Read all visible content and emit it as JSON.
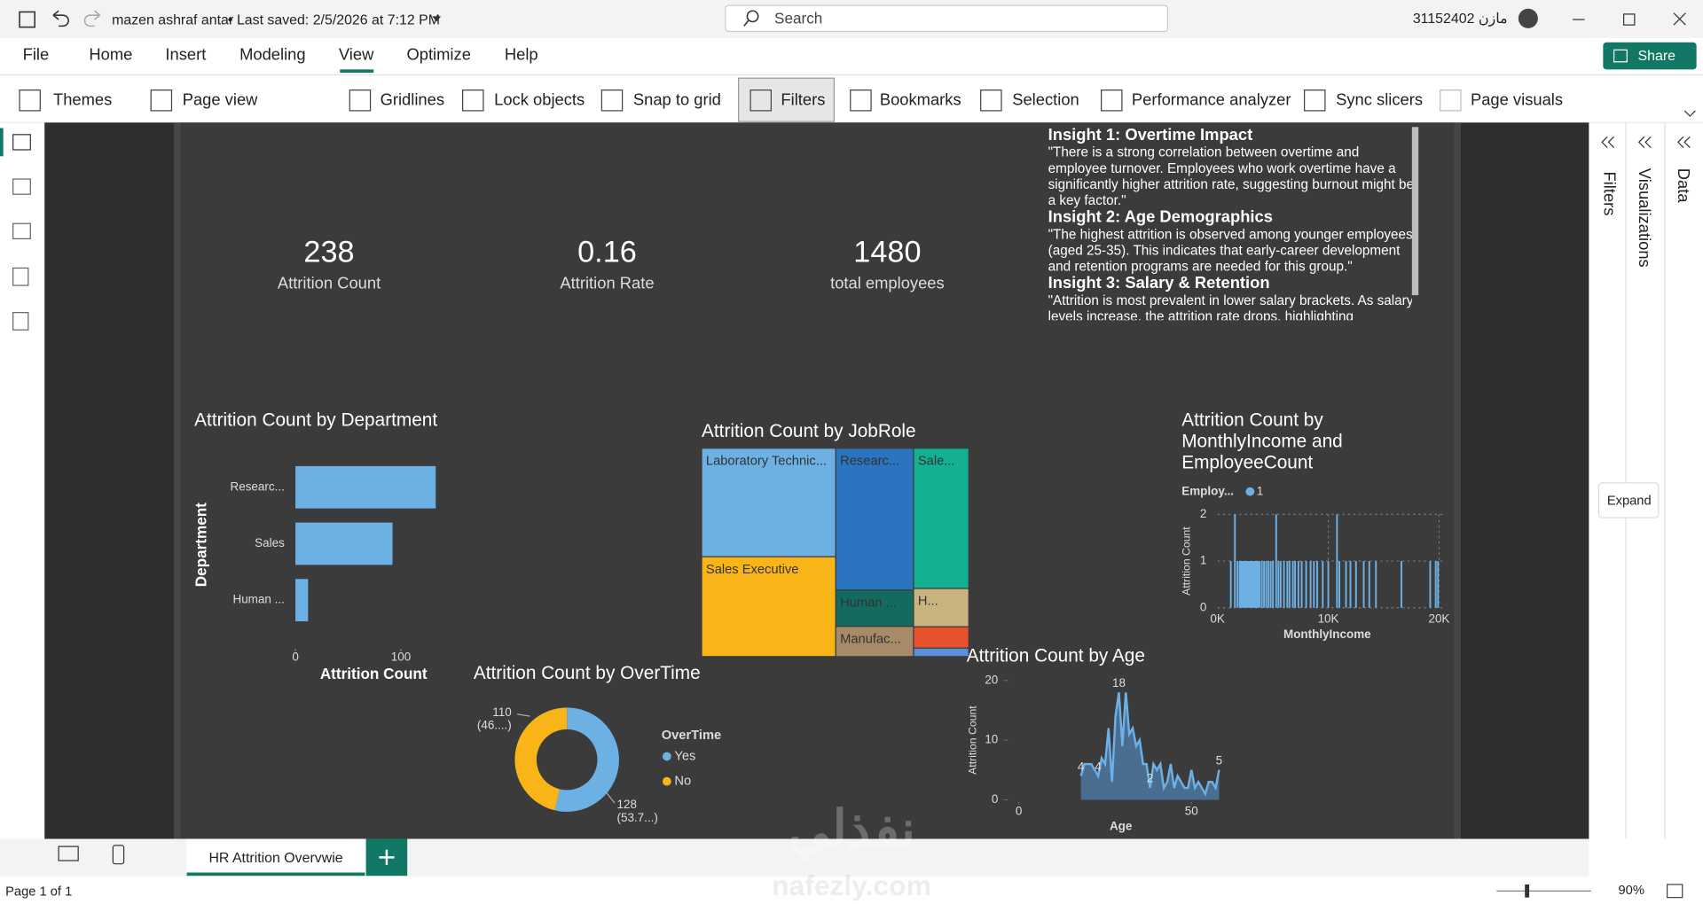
{
  "titlebar": {
    "user": "mazen ashraf antar",
    "saved": "Last saved: 2/5/2026 at 7:12 PM",
    "search": "Search",
    "account": "31152402 مازن"
  },
  "menu": [
    "File",
    "Home",
    "Insert",
    "Modeling",
    "View",
    "Optimize",
    "Help"
  ],
  "share": "Share",
  "ribbon": [
    "Themes",
    "Page view",
    "Gridlines",
    "Lock objects",
    "Snap to grid",
    "Filters",
    "Bookmarks",
    "Selection",
    "Performance analyzer",
    "Sync slicers",
    "Page visuals"
  ],
  "cards": [
    {
      "value": 238,
      "label": "Attrition Count"
    },
    {
      "value": 0.16,
      "label": "Attrition Rate"
    },
    {
      "value": 1480,
      "label": "total employees"
    }
  ],
  "insights": [
    {
      "title": "Insight 1: Overtime Impact",
      "lines": [
        "\"There is a strong correlation between overtime and",
        "employee turnover. Employees who work overtime have a",
        "significantly higher attrition rate, suggesting burnout might be",
        "a key factor.\""
      ]
    },
    {
      "title": "Insight 2: Age Demographics",
      "lines": [
        "\"The highest attrition is observed among younger employees",
        "(aged 25-35). This indicates that early-career development",
        "and retention programs are needed for this group.\""
      ]
    },
    {
      "title": "Insight 3: Salary & Retention",
      "lines": [
        "\"Attrition is most prevalent in lower salary brackets. As salary",
        "levels increase, the attrition rate drops, highlighting"
      ]
    }
  ],
  "department_chart": {
    "type": "bar",
    "title": "Attrition Count by Department",
    "x_label": "Attrition Count",
    "y_label": "Department",
    "categories": [
      "Researc...",
      "Sales",
      "Human ..."
    ],
    "values": [
      133,
      92,
      12
    ],
    "color": "#6cb0e4",
    "xlim": [
      0,
      140
    ],
    "xticks": [
      0,
      100
    ]
  },
  "jobrole_chart": {
    "type": "treemap",
    "title": "Attrition Count by JobRole",
    "categories": [
      "Laboratory Technic...",
      "Sales Executive",
      "Researc...",
      "Human ...",
      "Manufac...",
      "Sale...",
      "H...",
      null,
      null
    ],
    "values": [
      62,
      57,
      47,
      12,
      10,
      33,
      9,
      5,
      2
    ],
    "colors": [
      "#6cb0e4",
      "#f9b418",
      "#2b74c0",
      "#136a5f",
      "#a78b69",
      "#14b092",
      "#c9b37f",
      "#e8532b",
      "#5b8fd8"
    ]
  },
  "income_chart": {
    "type": "column",
    "title": [
      "Attrition Count by",
      "MonthlyIncome and",
      "EmployeeCount"
    ],
    "legend_title": "Employ...",
    "x_label": "MonthlyIncome",
    "y_label": "Attrition Count",
    "series": [
      {
        "name": "1",
        "color": "#6cb0e4",
        "x": [
          1200,
          1569,
          1800,
          2000,
          2100,
          2200,
          2300,
          2400,
          2500,
          2600,
          2700,
          2800,
          2900,
          3000,
          3100,
          3200,
          3300,
          3400,
          3500,
          3600,
          3700,
          3800,
          4000,
          4200,
          4400,
          4600,
          4800,
          5000,
          5294,
          5500,
          5700,
          6000,
          6300,
          6500,
          6800,
          7000,
          7300,
          7600,
          8000,
          8400,
          8700,
          9000,
          9500,
          10000,
          10784,
          11000,
          11600,
          12000,
          12500,
          13200,
          13700,
          14300,
          16600,
          19200,
          19700,
          19900
        ],
        "values": [
          1,
          2,
          1,
          1,
          1,
          1,
          1,
          1,
          1,
          1,
          1,
          1,
          1,
          1,
          1,
          1,
          1,
          1,
          1,
          1,
          1,
          1,
          1,
          1,
          1,
          1,
          1,
          1,
          2,
          1,
          1,
          1,
          1,
          1,
          1,
          1,
          1,
          1,
          1,
          1,
          1,
          1,
          1,
          1,
          2,
          1,
          1,
          1,
          1,
          1,
          1,
          1,
          1,
          1,
          1,
          1
        ]
      }
    ],
    "xlim": [
      0,
      20000
    ],
    "xticks": [
      {
        "value": 0,
        "label": "0K"
      },
      {
        "value": 10000,
        "label": "10K"
      },
      {
        "value": 20000,
        "label": "20K"
      }
    ],
    "ylim": [
      0,
      2
    ],
    "yticks": [
      0,
      1,
      2
    ],
    "grid": true
  },
  "overtime_chart": {
    "type": "donut",
    "title": "Attrition Count by OverTime",
    "legend_title": "OverTime",
    "categories": [
      "Yes",
      "No"
    ],
    "values": [
      128,
      110
    ],
    "percent_labels": [
      "(53.7...)",
      "(46....)"
    ],
    "colors": [
      "#6cb0e4",
      "#f9b418"
    ]
  },
  "age_chart": {
    "type": "area",
    "title": "Attrition Count by Age",
    "x_label": "Age",
    "y_label": "Attrition Count",
    "x": [
      18,
      19,
      20,
      21,
      22,
      23,
      24,
      25,
      26,
      27,
      28,
      29,
      30,
      31,
      32,
      33,
      34,
      35,
      36,
      37,
      38,
      39,
      40,
      41,
      42,
      43,
      44,
      45,
      46,
      47,
      48,
      49,
      50,
      51,
      52,
      53,
      54,
      55,
      56,
      57,
      58
    ],
    "values": [
      4,
      6,
      6,
      6,
      5,
      4,
      7,
      6,
      12,
      3,
      14,
      18,
      9,
      18,
      11,
      12,
      9,
      10,
      6,
      6,
      2,
      6,
      5,
      6,
      2,
      3,
      6,
      2,
      4,
      3,
      2,
      2,
      5,
      2,
      3,
      2,
      1,
      3,
      3,
      2,
      5
    ],
    "value_labels": [
      "4",
      null,
      null,
      null,
      null,
      "4",
      null,
      null,
      null,
      null,
      null,
      "18",
      null,
      null,
      null,
      null,
      null,
      null,
      null,
      null,
      "2",
      null,
      null,
      null,
      null,
      null,
      null,
      null,
      null,
      null,
      null,
      null,
      null,
      null,
      null,
      null,
      null,
      null,
      null,
      null,
      "5"
    ],
    "color": "#6cb0e4",
    "xlim": [
      0,
      60
    ],
    "xticks": [
      0,
      50
    ],
    "ylim": [
      0,
      20
    ],
    "yticks": [
      0,
      10,
      20
    ]
  },
  "panes": [
    "Filters",
    "Visualizations",
    "Data"
  ],
  "tooltip": "Expand",
  "page_tab": "HR Attrition Overvwie",
  "status": "Page 1 of 1",
  "zoom": "90%",
  "watermark": [
    "نفذلي",
    "nafezly.com"
  ]
}
